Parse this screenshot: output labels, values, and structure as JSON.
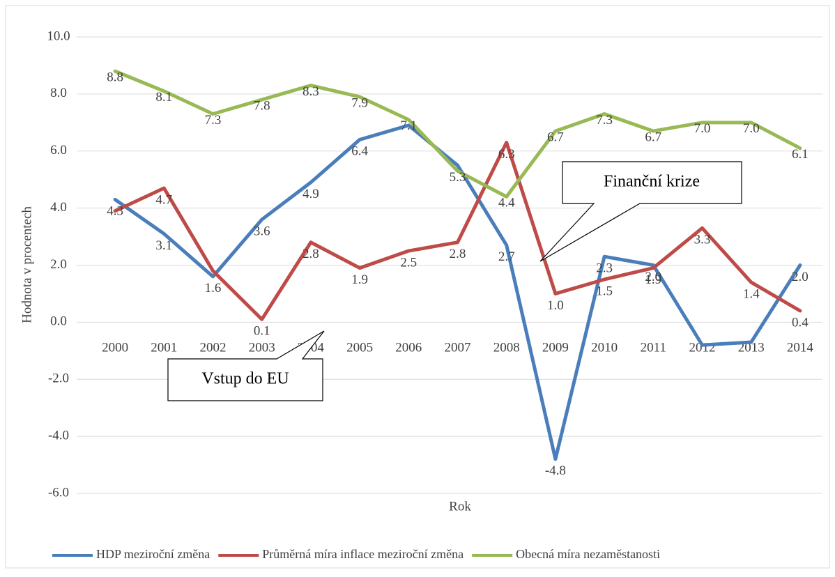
{
  "chart_data": {
    "type": "line",
    "y_label": "Hodnota v procentech",
    "x_label": "Rok",
    "categories": [
      "2000",
      "2001",
      "2002",
      "2003",
      "2004",
      "2005",
      "2006",
      "2007",
      "2008",
      "2009",
      "2010",
      "2011",
      "2012",
      "2013",
      "2014"
    ],
    "series": [
      {
        "name": "HDP meziroční změna",
        "color": "#4a7ebb",
        "values": [
          4.3,
          3.1,
          1.6,
          3.6,
          4.9,
          6.4,
          6.9,
          5.5,
          2.7,
          -4.8,
          2.3,
          2.0,
          -0.8,
          -0.7,
          2.0
        ],
        "value_labels": [
          "4.3",
          "3.1",
          "1.6",
          "3.6",
          "4.9",
          "6.4",
          null,
          null,
          "2.7",
          "-4.8",
          "2.3",
          "2.0",
          null,
          null,
          "2.0"
        ]
      },
      {
        "name": "Průměrná míra inflace meziroční změna",
        "color": "#be4b48",
        "values": [
          3.9,
          4.7,
          1.8,
          0.1,
          2.8,
          1.9,
          2.5,
          2.8,
          6.3,
          1.0,
          1.5,
          1.9,
          3.3,
          1.4,
          0.4
        ],
        "value_labels": [
          null,
          "4.7",
          null,
          "0.1",
          "2.8",
          "1.9",
          "2.5",
          "2.8",
          "6.3",
          "1.0",
          "1.5",
          "1.9",
          "3.3",
          "1.4",
          "0.4"
        ]
      },
      {
        "name": "Obecná míra nezaměstanosti",
        "color": "#98b954",
        "values": [
          8.8,
          8.1,
          7.3,
          7.8,
          8.3,
          7.9,
          7.1,
          5.3,
          4.4,
          6.7,
          7.3,
          6.7,
          7.0,
          7.0,
          6.1
        ],
        "value_labels": [
          "8.8",
          "8.1",
          "7.3",
          "7.8",
          "8.3",
          "7.9",
          "7.1",
          "5.3",
          "4.4",
          "6.7",
          "7.3",
          "6.7",
          "7.0",
          "7.0",
          "6.1"
        ]
      }
    ],
    "ylim": [
      -6,
      10
    ],
    "yticks": [
      {
        "value": -6,
        "label": "-6.0"
      },
      {
        "value": -4,
        "label": "-4.0"
      },
      {
        "value": -2,
        "label": "-2.0"
      },
      {
        "value": 0,
        "label": "0.0"
      },
      {
        "value": 2,
        "label": "2.0"
      },
      {
        "value": 4,
        "label": "4.0"
      },
      {
        "value": 6,
        "label": "6.0"
      },
      {
        "value": 8,
        "label": "8.0"
      },
      {
        "value": 10,
        "label": "10.0"
      }
    ],
    "grid": true,
    "legend": "bottom",
    "annotations": [
      "Finanční krize",
      "Vstup do EU"
    ]
  }
}
